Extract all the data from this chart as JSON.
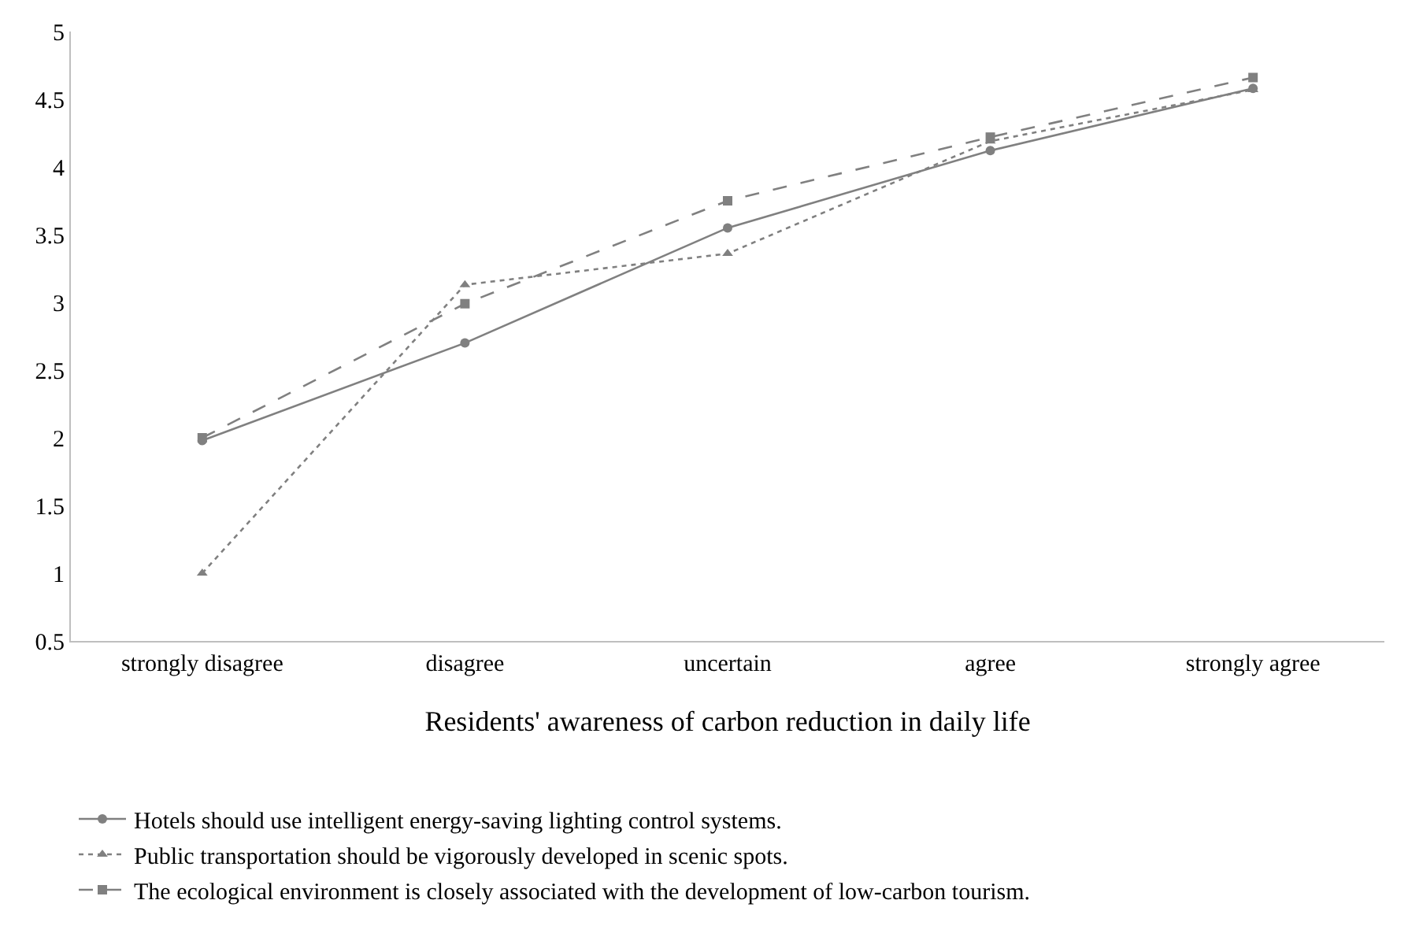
{
  "chart_data": {
    "type": "line",
    "xlabel": "Residents' awareness of carbon reduction in daily life",
    "categories": [
      "strongly disagree",
      "disagree",
      "uncertain",
      "agree",
      "strongly agree"
    ],
    "series": [
      {
        "name": "Hotels should use intelligent energy-saving lighting control systems.",
        "color": "#808080",
        "values": [
          1.98,
          2.7,
          3.55,
          4.12,
          4.58
        ],
        "marker": "circle",
        "line_style": "solid"
      },
      {
        "name": "Public transportation should be vigorously developed in scenic spots.",
        "color": "#808080",
        "values": [
          1.0,
          3.13,
          3.36,
          4.19,
          4.57
        ],
        "marker": "triangle",
        "line_style": "dotted"
      },
      {
        "name": "The ecological environment is closely associated with the development of low-carbon tourism.",
        "color": "#808080",
        "values": [
          2.0,
          2.99,
          3.75,
          4.22,
          4.66
        ],
        "marker": "square",
        "line_style": "dashed"
      }
    ],
    "ylim": [
      0.5,
      5
    ],
    "yticks": [
      0.5,
      1,
      1.5,
      2,
      2.5,
      3,
      3.5,
      4,
      4.5,
      5
    ],
    "grid": false,
    "legend": "bottom"
  }
}
